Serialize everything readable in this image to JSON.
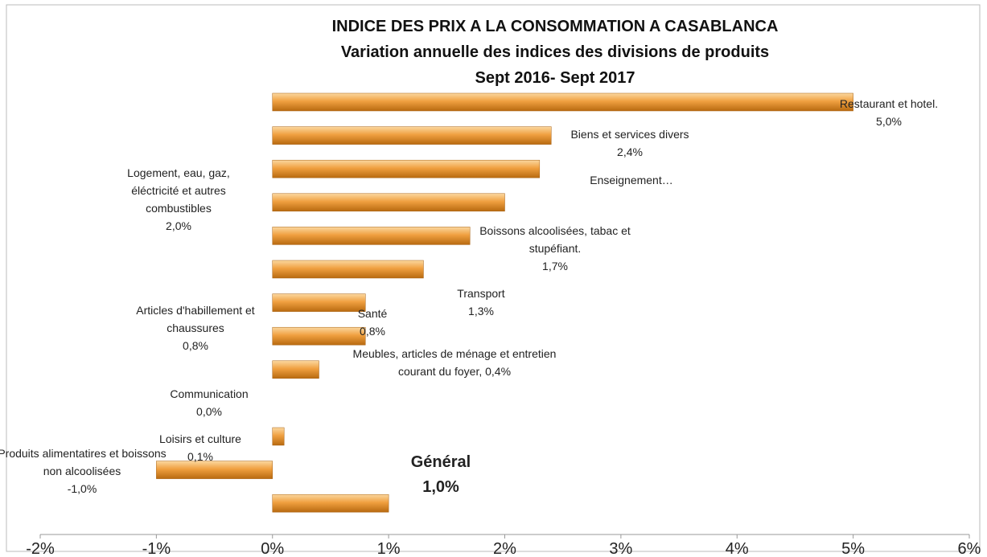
{
  "chart_data": {
    "type": "barh",
    "title": [
      "INDICE DES PRIX A LA CONSOMMATION A CASABLANCA",
      "Variation annuelle des indices des divisions de produits",
      "Sept 2016-  Sept 2017"
    ],
    "categories": [
      "Restaurant et hotel.",
      "Biens et services divers",
      "Enseignement…",
      "Logement, eau, gaz, éléctricité et autres combustibles",
      "Boissons alcoolisées, tabac et stupéfiant.",
      "Transport",
      "Articles d'habillement et chaussures",
      "Santé",
      "Meubles, articles de ménage et entretien courant du foyer,",
      "Communication",
      "Loisirs et culture",
      "Produits alimentatires et boissons non alcoolisées",
      "Général"
    ],
    "values": [
      5.0,
      2.4,
      2.3,
      2.0,
      1.7,
      1.3,
      0.8,
      0.8,
      0.4,
      0.0,
      0.1,
      -1.0,
      1.0
    ],
    "value_labels": [
      "5,0%",
      "2,4%",
      null,
      "2,0%",
      "1,7%",
      "1,3%",
      "0,8%",
      "0,8%",
      "0,4%",
      "0,0%",
      "0,1%",
      "-1,0%",
      "1,0%"
    ],
    "color": "#f0a040",
    "xlim": [
      -2,
      6
    ],
    "xticks": [
      {
        "value": -2,
        "label": "-2%"
      },
      {
        "value": -1,
        "label": "-1%"
      },
      {
        "value": 0,
        "label": "0%"
      },
      {
        "value": 1,
        "label": "1%"
      },
      {
        "value": 2,
        "label": "2%"
      },
      {
        "value": 3,
        "label": "3%"
      },
      {
        "value": 4,
        "label": "4%"
      },
      {
        "value": 5,
        "label": "5%"
      },
      {
        "value": 6,
        "label": "6%"
      }
    ]
  }
}
